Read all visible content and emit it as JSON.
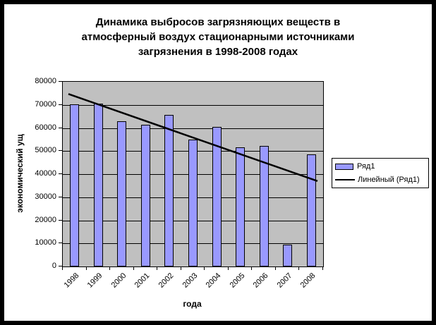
{
  "title": {
    "lines": [
      "Динамика выбросов загрязняющих веществ в",
      "атмосферный воздух стационарными источниками",
      "загрязнения в 1998-2008 годах"
    ]
  },
  "chart_data": {
    "type": "bar",
    "title": "Динамика выбросов загрязняющих веществ в атмосферный воздух стационарными источниками загрязнения в 1998-2008 годах",
    "categories": [
      "1998",
      "1999",
      "2000",
      "2001",
      "2002",
      "2003",
      "2004",
      "2005",
      "2006",
      "2007",
      "2008"
    ],
    "series": [
      {
        "name": "Ряд1",
        "values": [
          70300,
          70500,
          62900,
          61400,
          65600,
          54900,
          60600,
          51500,
          52300,
          9500,
          48600
        ]
      }
    ],
    "trendline": {
      "name": "Линейный (Ряд1)",
      "type": "linear",
      "start_value": 74700,
      "end_value": 37000
    },
    "xlabel": "года",
    "ylabel": "экономический ущ",
    "ylim": [
      0,
      80000
    ],
    "yticks": [
      0,
      10000,
      20000,
      30000,
      40000,
      50000,
      60000,
      70000,
      80000
    ],
    "grid": "horizontal",
    "legend_position": "right",
    "colors": {
      "bar_fill": "#9999ff",
      "bar_border": "#000000",
      "plot_bg": "#c0c0c0",
      "gridline": "#000000",
      "trendline": "#000000",
      "frame_border": "#000000",
      "background": "#ffffff"
    }
  }
}
